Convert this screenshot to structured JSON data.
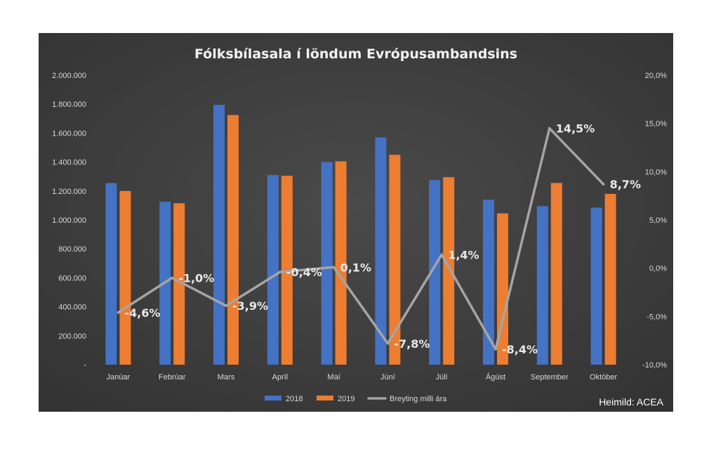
{
  "chart_data": {
    "type": "bar",
    "title": "Fólksbílasala í löndum Evrópusambandsins",
    "source": "Heimild: ACEA",
    "categories": [
      "Janúar",
      "Febrúar",
      "Mars",
      "Apríl",
      "Maí",
      "Júní",
      "Júlí",
      "Ágúst",
      "September",
      "Október"
    ],
    "series": [
      {
        "name": "2018",
        "type": "bar",
        "axis": "left",
        "color": "#4472C4",
        "values": [
          1255000,
          1125000,
          1795000,
          1310000,
          1400000,
          1570000,
          1275000,
          1140000,
          1095000,
          1085000
        ]
      },
      {
        "name": "2019",
        "type": "bar",
        "axis": "left",
        "color": "#ED7D31",
        "values": [
          1200000,
          1115000,
          1725000,
          1305000,
          1405000,
          1450000,
          1295000,
          1045000,
          1255000,
          1180000
        ]
      },
      {
        "name": "Breyting milli ára",
        "type": "line",
        "axis": "right",
        "color": "#A5A5A5",
        "values": [
          -4.6,
          -1.0,
          -3.9,
          -0.4,
          0.1,
          -7.8,
          1.4,
          -8.4,
          14.5,
          8.7
        ],
        "labels": [
          "-4,6%",
          "-1,0%",
          "-3,9%",
          "-0,4%",
          "0,1%",
          "-7,8%",
          "1,4%",
          "-8,4%",
          "14,5%",
          "8,7%"
        ]
      }
    ],
    "y_left": {
      "ylim": [
        0,
        2000000
      ],
      "ticks": [
        0,
        200000,
        400000,
        600000,
        800000,
        1000000,
        1200000,
        1400000,
        1600000,
        1800000,
        2000000
      ],
      "tick_labels": [
        "-",
        "200.000",
        "400.000",
        "600.000",
        "800.000",
        "1.000.000",
        "1.200.000",
        "1.400.000",
        "1.600.000",
        "1.800.000",
        "2.000.000"
      ]
    },
    "y_right": {
      "ylim": [
        -10,
        20
      ],
      "ticks": [
        -10,
        -5,
        0,
        5,
        10,
        15,
        20
      ],
      "tick_labels": [
        "-10,0%",
        "-5,0%",
        "0,0%",
        "5,0%",
        "10,0%",
        "15,0%",
        "20,0%"
      ]
    },
    "grid": false,
    "legend_position": "bottom",
    "background": "#404040"
  }
}
